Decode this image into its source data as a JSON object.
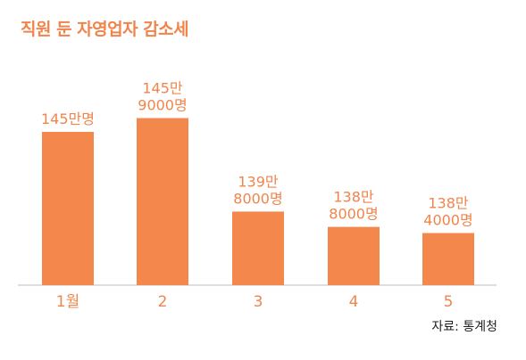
{
  "title": "직원 둔 자영업자 감소세",
  "source": "자료: 통계청",
  "colors": {
    "bar": "#f4874b",
    "label": "#f0854c",
    "axis": "#bdbdbd"
  },
  "chart_data": {
    "type": "bar",
    "categories": [
      "1월",
      "2",
      "3",
      "4",
      "5"
    ],
    "values": [
      1450000,
      1459000,
      1398000,
      1388000,
      1384000
    ],
    "data_labels": [
      [
        "145만명"
      ],
      [
        "145만",
        "9000명"
      ],
      [
        "139만",
        "8000명"
      ],
      [
        "138만",
        "8000명"
      ],
      [
        "138만",
        "4000명"
      ]
    ],
    "title": "직원 둔 자영업자 감소세",
    "xlabel": "",
    "ylabel": "",
    "grid": false
  }
}
